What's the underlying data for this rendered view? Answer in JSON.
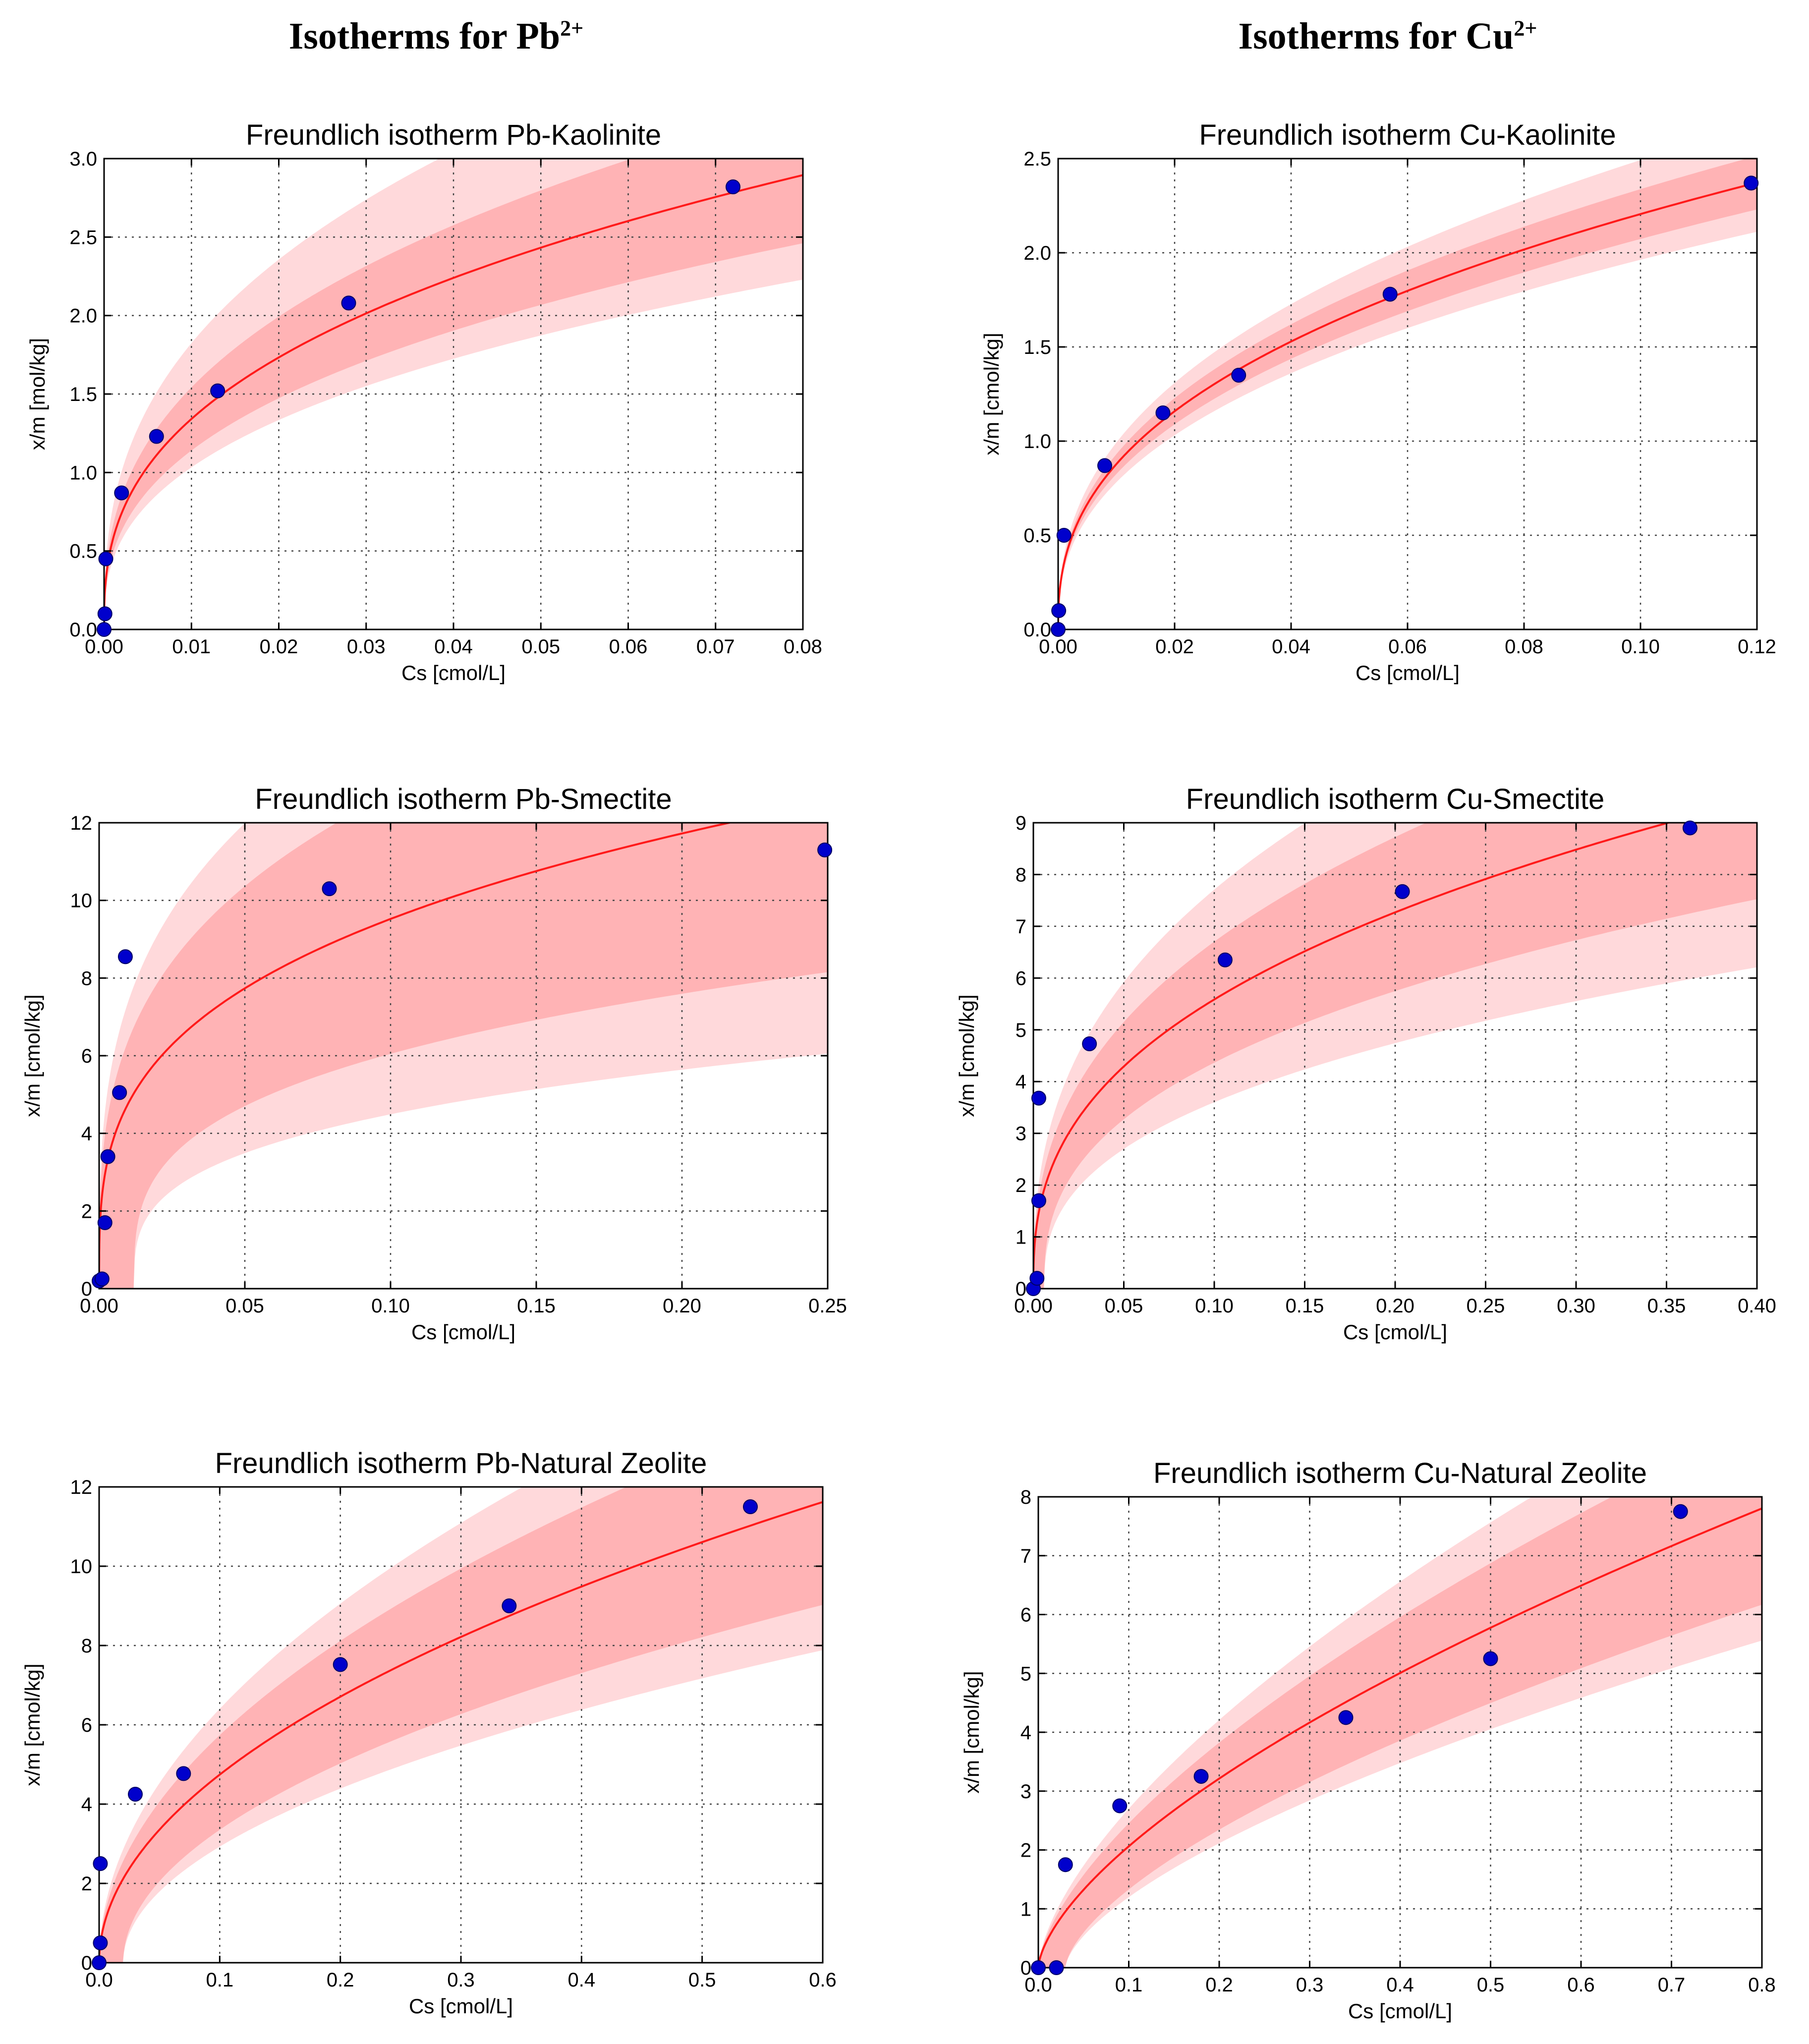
{
  "headers": {
    "left": {
      "text": "Isotherms for Pb",
      "sup": "2+"
    },
    "right": {
      "text": "Isotherms for Cu",
      "sup": "2+"
    }
  },
  "colors": {
    "curve": "#ff1a1a",
    "band_outer": "#ffd9db",
    "band_inner": "#ffb3b5",
    "point": "#0000cc",
    "point_edge": "#000066"
  },
  "chart_data": [
    {
      "type": "scatter",
      "title": "Freundlich isotherm Pb-Kaolinite",
      "xlabel": "Cs [cmol/L]",
      "ylabel": "x/m [mol/kg]",
      "xlim": [
        0,
        0.08
      ],
      "ylim": [
        0,
        3.0
      ],
      "xticks": [
        0,
        0.01,
        0.02,
        0.03,
        0.04,
        0.05,
        0.06,
        0.07,
        0.08
      ],
      "xticklabels": [
        "0.00",
        "0.01",
        "0.02",
        "0.03",
        "0.04",
        "0.05",
        "0.06",
        "0.07",
        "0.08"
      ],
      "yticks": [
        0,
        0.5,
        1.0,
        1.5,
        2.0,
        2.5,
        3.0
      ],
      "yticklabels": [
        "0.0",
        "0.5",
        "1.0",
        "1.5",
        "2.0",
        "2.5",
        "3.0"
      ],
      "x": [
        0.0,
        0.0001,
        0.0002,
        0.002,
        0.006,
        0.013,
        0.028,
        0.072
      ],
      "y": [
        0.0,
        0.1,
        0.45,
        0.87,
        1.23,
        1.52,
        2.08,
        2.82
      ],
      "fit": {
        "model": "freundlich",
        "K": 7.37,
        "n_inv": 0.37
      },
      "band_inner": [
        0.85,
        1.15
      ],
      "band_outer": [
        0.77,
        1.36
      ]
    },
    {
      "type": "scatter",
      "title": "Freundlich isotherm Cu-Kaolinite",
      "xlabel": "Cs [cmol/L]",
      "ylabel": "x/m [cmol/kg]",
      "xlim": [
        0,
        0.12
      ],
      "ylim": [
        0,
        2.5
      ],
      "xticks": [
        0,
        0.02,
        0.04,
        0.06,
        0.08,
        0.1,
        0.12
      ],
      "xticklabels": [
        "0.00",
        "0.02",
        "0.04",
        "0.06",
        "0.08",
        "0.10",
        "0.12"
      ],
      "yticks": [
        0,
        0.5,
        1.0,
        1.5,
        2.0,
        2.5
      ],
      "yticklabels": [
        "0.0",
        "0.5",
        "1.0",
        "1.5",
        "2.0",
        "2.5"
      ],
      "x": [
        0.0,
        0.0001,
        0.001,
        0.008,
        0.018,
        0.031,
        0.057,
        0.119
      ],
      "y": [
        0.0,
        0.1,
        0.5,
        0.87,
        1.15,
        1.35,
        1.78,
        2.37
      ],
      "fit": {
        "model": "freundlich",
        "K": 5.54,
        "n_inv": 0.4
      },
      "band_inner": [
        0.94,
        1.06
      ],
      "band_outer": [
        0.89,
        1.13
      ]
    },
    {
      "type": "scatter",
      "title": "Freundlich isotherm Pb-Smectite",
      "xlabel": "Cs [cmol/L]",
      "ylabel": "x/m [cmol/kg]",
      "xlim": [
        0,
        0.25
      ],
      "ylim": [
        0,
        12
      ],
      "xticks": [
        0,
        0.05,
        0.1,
        0.15,
        0.2,
        0.25
      ],
      "xticklabels": [
        "0.00",
        "0.05",
        "0.10",
        "0.15",
        "0.20",
        "0.25"
      ],
      "yticks": [
        0,
        2,
        4,
        6,
        8,
        10,
        12
      ],
      "yticklabels": [
        "0",
        "2",
        "4",
        "6",
        "8",
        "10",
        "12"
      ],
      "x": [
        0.0,
        0.001,
        0.002,
        0.003,
        0.007,
        0.009,
        0.079,
        0.249
      ],
      "y": [
        0.2,
        0.25,
        1.7,
        3.4,
        5.05,
        8.55,
        10.3,
        11.3
      ],
      "fit": {
        "model": "freundlich",
        "K": 19.0,
        "n_inv": 0.3
      },
      "band_inner": [
        0.66,
        1.34
      ],
      "band_outer": [
        0.49,
        1.55
      ],
      "band_shift": 0.012
    },
    {
      "type": "scatter",
      "title": "Freundlich isotherm Cu-Smectite",
      "xlabel": "Cs [cmol/L]",
      "ylabel": "x/m [cmol/kg]",
      "xlim": [
        0,
        0.4
      ],
      "ylim": [
        0,
        9
      ],
      "xticks": [
        0,
        0.05,
        0.1,
        0.15,
        0.2,
        0.25,
        0.3,
        0.35,
        0.4
      ],
      "xticklabels": [
        "0.00",
        "0.05",
        "0.10",
        "0.15",
        "0.20",
        "0.25",
        "0.30",
        "0.35",
        "0.40"
      ],
      "yticks": [
        0,
        1,
        2,
        3,
        4,
        5,
        6,
        7,
        8,
        9
      ],
      "yticklabels": [
        "0",
        "1",
        "2",
        "3",
        "4",
        "5",
        "6",
        "7",
        "8",
        "9"
      ],
      "x": [
        0.0,
        0.002,
        0.003,
        0.003,
        0.031,
        0.106,
        0.204,
        0.363
      ],
      "y": [
        0.0,
        0.2,
        1.7,
        3.68,
        4.73,
        6.35,
        7.67,
        8.9
      ],
      "fit": {
        "model": "freundlich",
        "K": 13.4,
        "n_inv": 0.38
      },
      "band_inner": [
        0.8,
        1.2
      ],
      "band_outer": [
        0.66,
        1.38
      ],
      "band_shift": 0.006
    },
    {
      "type": "scatter",
      "title": "Freundlich isotherm Pb-Natural Zeolite",
      "xlabel": "Cs [cmol/L]",
      "ylabel": "x/m [cmol/kg]",
      "xlim": [
        0,
        0.6
      ],
      "ylim": [
        0,
        12
      ],
      "xticks": [
        0,
        0.1,
        0.2,
        0.3,
        0.4,
        0.5,
        0.6
      ],
      "xticklabels": [
        "0.0",
        "0.1",
        "0.2",
        "0.3",
        "0.4",
        "0.5",
        "0.6"
      ],
      "yticks": [
        0,
        2,
        4,
        6,
        8,
        10,
        12
      ],
      "yticklabels": [
        "0",
        "2",
        "4",
        "6",
        "8",
        "10",
        "12"
      ],
      "x": [
        0.0,
        0.001,
        0.001,
        0.03,
        0.07,
        0.2,
        0.34,
        0.54
      ],
      "y": [
        0.0,
        0.5,
        2.5,
        4.25,
        4.77,
        7.52,
        9.0,
        11.5
      ],
      "fit": {
        "model": "freundlich",
        "K": 15.0,
        "n_inv": 0.5
      },
      "band_inner": [
        0.79,
        1.21
      ],
      "band_outer": [
        0.69,
        1.35
      ],
      "band_shift": 0.02
    },
    {
      "type": "scatter",
      "title": "Freundlich isotherm Cu-Natural Zeolite",
      "xlabel": "Cs [cmol/L]",
      "ylabel": "x/m [cmol/kg]",
      "xlim": [
        0,
        0.8
      ],
      "ylim": [
        0,
        8
      ],
      "xticks": [
        0,
        0.1,
        0.2,
        0.3,
        0.4,
        0.5,
        0.6,
        0.7,
        0.8
      ],
      "xticklabels": [
        "0.0",
        "0.1",
        "0.2",
        "0.3",
        "0.4",
        "0.5",
        "0.6",
        "0.7",
        "0.8"
      ],
      "yticks": [
        0,
        1,
        2,
        3,
        4,
        5,
        6,
        7,
        8
      ],
      "yticklabels": [
        "0",
        "1",
        "2",
        "3",
        "4",
        "5",
        "6",
        "7",
        "8"
      ],
      "x": [
        0.0,
        0.02,
        0.03,
        0.09,
        0.18,
        0.34,
        0.5,
        0.71
      ],
      "y": [
        0.0,
        0.0,
        1.75,
        2.75,
        3.25,
        4.25,
        5.25,
        7.75
      ],
      "fit": {
        "model": "freundlich",
        "K": 9.0,
        "n_inv": 0.64
      },
      "band_inner": [
        0.81,
        1.19
      ],
      "band_outer": [
        0.73,
        1.31
      ],
      "band_shift": 0.03
    }
  ]
}
